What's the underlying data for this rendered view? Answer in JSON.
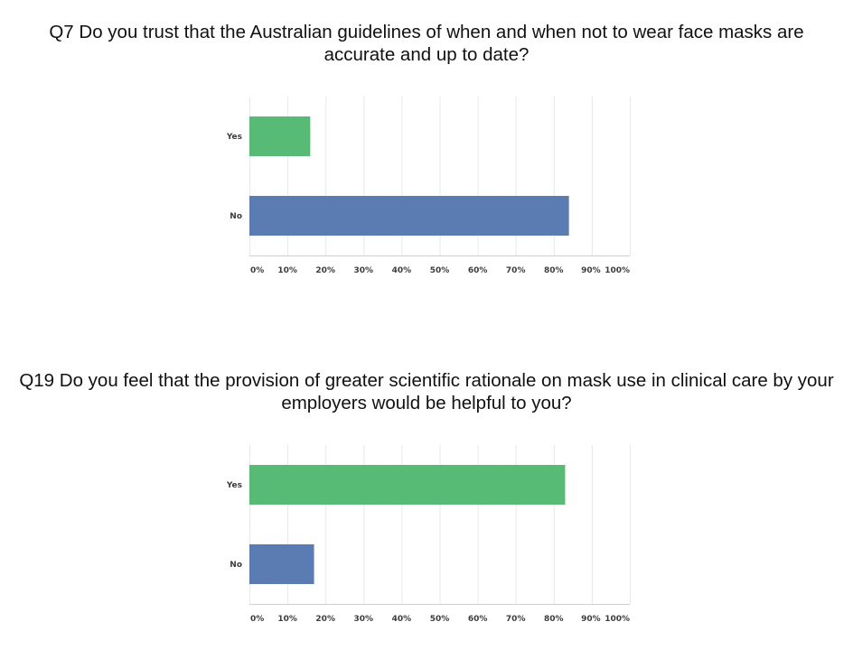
{
  "chart_data": [
    {
      "type": "bar",
      "orientation": "horizontal",
      "title": "Q7 Do you trust that the Australian guidelines of when and when not to wear face masks are accurate and up to date?",
      "categories": [
        "Yes",
        "No"
      ],
      "values": [
        16,
        84
      ],
      "colors": [
        "#57bb76",
        "#5b7cb3"
      ],
      "xlim": [
        0,
        100
      ],
      "xticks": [
        "0%",
        "10%",
        "20%",
        "30%",
        "40%",
        "50%",
        "60%",
        "70%",
        "80%",
        "90%",
        "100%"
      ],
      "grid": true
    },
    {
      "type": "bar",
      "orientation": "horizontal",
      "title": "Q19 Do you feel that the provision of greater scientific rationale on mask use in clinical care by your employers would be helpful to you?",
      "categories": [
        "Yes",
        "No"
      ],
      "values": [
        83,
        17
      ],
      "colors": [
        "#57bb76",
        "#5b7cb3"
      ],
      "xlim": [
        0,
        100
      ],
      "xticks": [
        "0%",
        "10%",
        "20%",
        "30%",
        "40%",
        "50%",
        "60%",
        "70%",
        "80%",
        "90%",
        "100%"
      ],
      "grid": true
    }
  ]
}
